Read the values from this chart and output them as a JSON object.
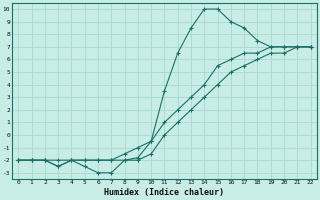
{
  "xlabel": "Humidex (Indice chaleur)",
  "xlim": [
    -0.5,
    22.5
  ],
  "ylim": [
    -3.5,
    10.5
  ],
  "xticks": [
    0,
    1,
    2,
    3,
    4,
    5,
    6,
    7,
    8,
    9,
    10,
    11,
    12,
    13,
    14,
    15,
    16,
    17,
    18,
    19,
    20,
    21,
    22
  ],
  "yticks": [
    -3,
    -2,
    -1,
    0,
    1,
    2,
    3,
    4,
    5,
    6,
    7,
    8,
    9,
    10
  ],
  "bg_color": "#c8ece6",
  "line_color": "#1a7068",
  "grid_color": "#a8d8d0",
  "curves": [
    {
      "x": [
        0,
        1,
        2,
        3,
        4,
        5,
        6,
        7,
        8,
        9,
        10,
        11,
        12,
        13,
        14,
        15,
        16,
        17,
        18,
        19,
        20,
        21,
        22
      ],
      "y": [
        -2,
        -2,
        -2,
        -2.5,
        -2,
        -2.5,
        -3,
        -3,
        -2,
        -1.8,
        -0.5,
        3.5,
        6.5,
        8.5,
        10,
        10,
        9,
        8.5,
        7.5,
        7,
        7,
        7,
        7
      ]
    },
    {
      "x": [
        0,
        1,
        2,
        3,
        4,
        5,
        6,
        7,
        8,
        9,
        10,
        11,
        12,
        13,
        14,
        15,
        16,
        17,
        18,
        19,
        20,
        21,
        22
      ],
      "y": [
        -2,
        -2,
        -2,
        -2.5,
        -2,
        -2,
        -2,
        -2,
        -1.5,
        -1,
        -0.5,
        1,
        2,
        3,
        4,
        5.5,
        6,
        6.5,
        6.5,
        7,
        7,
        7,
        7
      ]
    },
    {
      "x": [
        0,
        1,
        2,
        3,
        4,
        5,
        6,
        7,
        8,
        9,
        10,
        11,
        12,
        13,
        14,
        15,
        16,
        17,
        18,
        19,
        20,
        21,
        22
      ],
      "y": [
        -2,
        -2,
        -2,
        -2,
        -2,
        -2,
        -2,
        -2,
        -2,
        -2,
        -1.5,
        0,
        1,
        2,
        3,
        4,
        5,
        5.5,
        6,
        6.5,
        6.5,
        7,
        7
      ]
    }
  ]
}
